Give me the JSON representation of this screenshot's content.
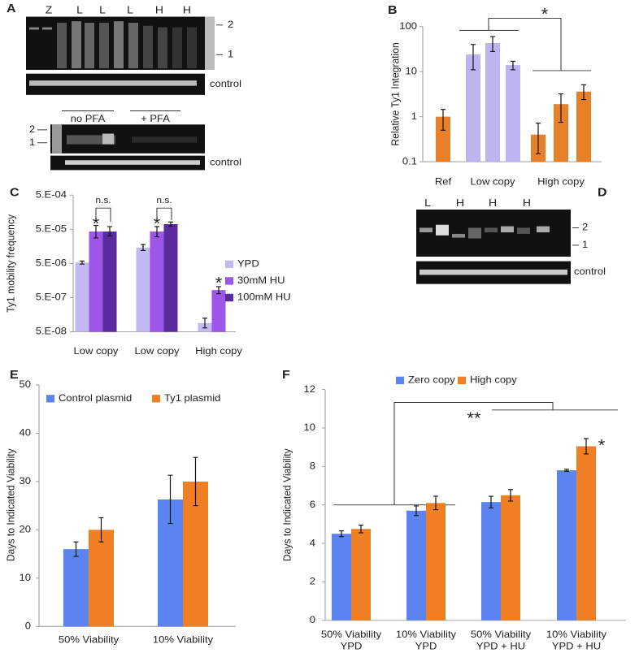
{
  "gel_a": {
    "label": "A",
    "lanes": [
      "Z",
      "L",
      "L",
      "L",
      "H",
      "H"
    ],
    "markers": [
      "2",
      "1"
    ],
    "control": "control",
    "lower_conditions": [
      "no PFA",
      "+ PFA"
    ],
    "lower_markers": [
      "2",
      "1"
    ],
    "lower_control": "control"
  },
  "gel_d": {
    "label": "D",
    "lanes": [
      "L",
      "H",
      "H",
      "H"
    ],
    "markers": [
      "2",
      "1"
    ],
    "control": "control"
  },
  "chart_data": [
    {
      "type": "bar",
      "panel": "B",
      "ylabel": "Relative Ty1 Integration",
      "log_scale": true,
      "categories": [
        "Ref",
        null,
        "Low copy",
        null,
        null,
        "High copy",
        null
      ],
      "values": [
        1,
        24,
        43,
        14,
        0.4,
        1.9,
        3.6
      ],
      "colors": [
        "#e8802a",
        "#bdb5f0",
        "#bdb5f0",
        "#bdb5f0",
        "#e8802a",
        "#e8802a",
        "#e8802a"
      ],
      "error_bars": [
        [
          0.5,
          1.45
        ],
        [
          11,
          40
        ],
        [
          28,
          60
        ],
        [
          11,
          17
        ],
        [
          0.15,
          0.72
        ],
        [
          0.75,
          3.2
        ],
        [
          2.4,
          5.1
        ]
      ],
      "ylim": [
        0.1,
        100
      ],
      "yticks": [
        0.1,
        1,
        10,
        100
      ],
      "annotations": [
        "*"
      ]
    },
    {
      "type": "bar",
      "panel": "C",
      "ylabel": "Ty1 mobility frequency",
      "log_scale": true,
      "categories": [
        "Low copy",
        "Low copy",
        "High copy"
      ],
      "series": [
        {
          "name": "YPD",
          "color": "#c3b8f2",
          "values": [
            5.3e-06,
            1.46e-05,
            9e-08
          ],
          "error_bars": [
            [
              4.8e-06,
              5.9e-06
            ],
            [
              1.2e-05,
              1.8e-05
            ],
            [
              6.5e-08,
              1.25e-07
            ]
          ]
        },
        {
          "name": "30mM HU",
          "color": "#9e55ea",
          "values": [
            4.3e-05,
            4.3e-05,
            8.3e-07
          ],
          "error_bars": [
            [
              2.8e-05,
              6.5e-05
            ],
            [
              3e-05,
              6e-05
            ],
            [
              6.5e-07,
              1.05e-06
            ]
          ]
        },
        {
          "name": "100mM HU",
          "color": "#5b2a9c",
          "values": [
            4.3e-05,
            7.1e-05,
            null
          ],
          "error_bars": [
            [
              3.2e-05,
              6e-05
            ],
            [
              6.2e-05,
              8.2e-05
            ],
            null
          ]
        }
      ],
      "ylim": [
        5e-08,
        0.0005
      ],
      "yticks": [
        {
          "value": 5e-08,
          "label": "5.E-08"
        },
        {
          "value": 5e-07,
          "label": "5.E-07"
        },
        {
          "value": 5e-06,
          "label": "5.E-06"
        },
        {
          "value": 5e-05,
          "label": "5.E-05"
        },
        {
          "value": 0.0005,
          "label": "5.E-04"
        }
      ],
      "legend": "right",
      "annotations": [
        "*",
        "*",
        "*",
        "n.s.",
        "n.s."
      ]
    },
    {
      "type": "bar",
      "panel": "E",
      "ylabel": "Days to Indicated Viability",
      "log_scale": false,
      "categories": [
        "50% Viability",
        "10% Viability"
      ],
      "series": [
        {
          "name": "Control plasmid",
          "color": "#5b84f0",
          "values": [
            16,
            26.3
          ],
          "errors": [
            1.5,
            5
          ]
        },
        {
          "name": "Ty1 plasmid",
          "color": "#ef7f22",
          "values": [
            20,
            30
          ],
          "errors": [
            2.5,
            5
          ]
        }
      ],
      "ylim": [
        0,
        50
      ],
      "yticks": [
        0,
        10,
        20,
        30,
        40,
        50
      ],
      "legend": "top"
    },
    {
      "type": "bar",
      "panel": "F",
      "ylabel": "Days to Indicated Viability",
      "log_scale": false,
      "categories": [
        [
          "50% Viability",
          "YPD"
        ],
        [
          "10% Viability",
          "YPD"
        ],
        [
          "50% Viability",
          "YPD + HU"
        ],
        [
          "10% Viability",
          "YPD + HU"
        ]
      ],
      "series": [
        {
          "name": "Zero copy",
          "color": "#5b84f0",
          "values": [
            4.5,
            5.7,
            6.15,
            7.8
          ],
          "errors": [
            0.15,
            0.25,
            0.3,
            0.05
          ]
        },
        {
          "name": "High copy",
          "color": "#ef7f22",
          "values": [
            4.75,
            6.1,
            6.5,
            9.05
          ],
          "errors": [
            0.2,
            0.35,
            0.3,
            0.4
          ]
        }
      ],
      "ylim": [
        0,
        12
      ],
      "yticks": [
        0,
        2,
        4,
        6,
        8,
        10,
        12
      ],
      "legend": "top",
      "annotations": [
        "**",
        "*"
      ]
    }
  ]
}
